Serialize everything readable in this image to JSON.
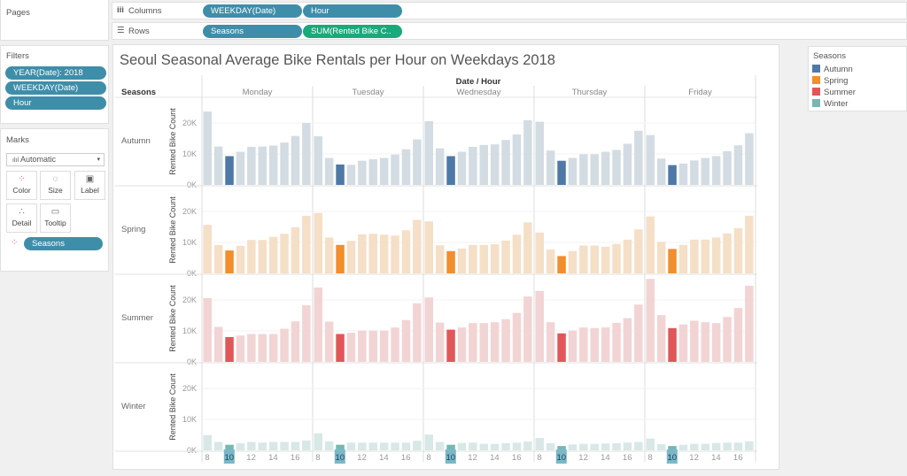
{
  "shelves": {
    "pages_label": "Pages",
    "columns_label": "Columns",
    "rows_label": "Rows",
    "columns": [
      "WEEKDAY(Date)",
      "Hour"
    ],
    "rows": [
      "Seasons",
      "SUM(Rented Bike C.."
    ]
  },
  "filters": {
    "label": "Filters",
    "items": [
      "YEAR(Date): 2018",
      "WEEKDAY(Date)",
      "Hour"
    ]
  },
  "marks": {
    "label": "Marks",
    "type": "Automatic",
    "cards": [
      "Color",
      "Size",
      "Label",
      "Detail",
      "Tooltip"
    ],
    "color_field": "Seasons"
  },
  "legend": {
    "title": "Seasons",
    "items": [
      {
        "label": "Autumn",
        "color": "#4e79a7"
      },
      {
        "label": "Spring",
        "color": "#f28e2b"
      },
      {
        "label": "Summer",
        "color": "#e15759"
      },
      {
        "label": "Winter",
        "color": "#76b7b2"
      }
    ]
  },
  "chart_data": {
    "type": "bar",
    "title": "Seoul Seasonal Average Bike Rentals per Hour on Weekdays 2018",
    "row_header": "Seasons",
    "column_header": "Date / Hour",
    "ylabel": "Rented Bike Count",
    "yticks": [
      "0K",
      "10K",
      "20K"
    ],
    "ylim": [
      0,
      28000
    ],
    "days": [
      "Monday",
      "Tuesday",
      "Wednesday",
      "Thursday",
      "Friday"
    ],
    "hours": [
      8,
      9,
      10,
      11,
      12,
      13,
      14,
      15,
      16,
      17
    ],
    "xtick_labels": [
      "8",
      "10",
      "12",
      "14",
      "16"
    ],
    "highlighted_hour": 10,
    "light_colors": {
      "Autumn": "#d3dce3",
      "Spring": "#f5dfc7",
      "Summer": "#f2d4d5",
      "Winter": "#d8e8e6"
    },
    "series": [
      {
        "name": "Autumn",
        "values": [
          [
            23700,
            12400,
            9300,
            10700,
            12300,
            12400,
            12700,
            13700,
            15800,
            20000
          ],
          [
            15700,
            8700,
            6600,
            6500,
            7800,
            8300,
            8700,
            9800,
            11500,
            14700
          ],
          [
            20600,
            11800,
            9300,
            10700,
            12300,
            12900,
            13100,
            14500,
            16300,
            20900
          ],
          [
            20400,
            11100,
            7800,
            8700,
            9900,
            9900,
            10700,
            11300,
            13300,
            17500
          ],
          [
            16100,
            8500,
            6400,
            6900,
            7900,
            8700,
            9300,
            10900,
            12800,
            16700
          ]
        ]
      },
      {
        "name": "Spring",
        "values": [
          [
            15700,
            9200,
            7400,
            8900,
            10800,
            10800,
            11800,
            12800,
            14900,
            18600
          ],
          [
            19500,
            11600,
            9200,
            10500,
            12600,
            12800,
            12500,
            12200,
            13900,
            17300
          ],
          [
            16800,
            9100,
            7200,
            8000,
            9200,
            9200,
            9400,
            10600,
            12500,
            16500
          ],
          [
            13200,
            7700,
            5600,
            7200,
            9000,
            9000,
            8600,
            9500,
            10900,
            14200
          ],
          [
            18400,
            10200,
            7900,
            9200,
            10900,
            10900,
            11600,
            12900,
            14600,
            18600
          ]
        ]
      },
      {
        "name": "Summer",
        "values": [
          [
            20600,
            11300,
            8000,
            8500,
            9000,
            9000,
            9000,
            10700,
            13100,
            18300
          ],
          [
            24000,
            13000,
            9000,
            9400,
            10100,
            10100,
            10100,
            11100,
            13500,
            18900
          ],
          [
            20800,
            12700,
            10400,
            11100,
            12500,
            12500,
            12800,
            13800,
            15800,
            21100
          ],
          [
            22900,
            12800,
            9200,
            10100,
            11100,
            10900,
            11100,
            12600,
            14100,
            18500
          ],
          [
            26800,
            15100,
            10900,
            12100,
            13300,
            12800,
            12500,
            14500,
            17400,
            24600
          ]
        ]
      },
      {
        "name": "Winter",
        "values": [
          [
            4900,
            2700,
            1800,
            2300,
            2700,
            2500,
            2700,
            2700,
            2700,
            3200
          ],
          [
            5500,
            2900,
            1800,
            2500,
            2500,
            2500,
            2500,
            2500,
            2500,
            3100
          ],
          [
            5100,
            2700,
            1800,
            2400,
            2500,
            2100,
            2100,
            2300,
            2500,
            2900
          ],
          [
            4000,
            2300,
            1400,
            1900,
            2100,
            2100,
            2200,
            2300,
            2500,
            2700
          ],
          [
            3800,
            2000,
            1400,
            1800,
            2100,
            2100,
            2400,
            2500,
            2500,
            2900
          ]
        ]
      }
    ]
  }
}
